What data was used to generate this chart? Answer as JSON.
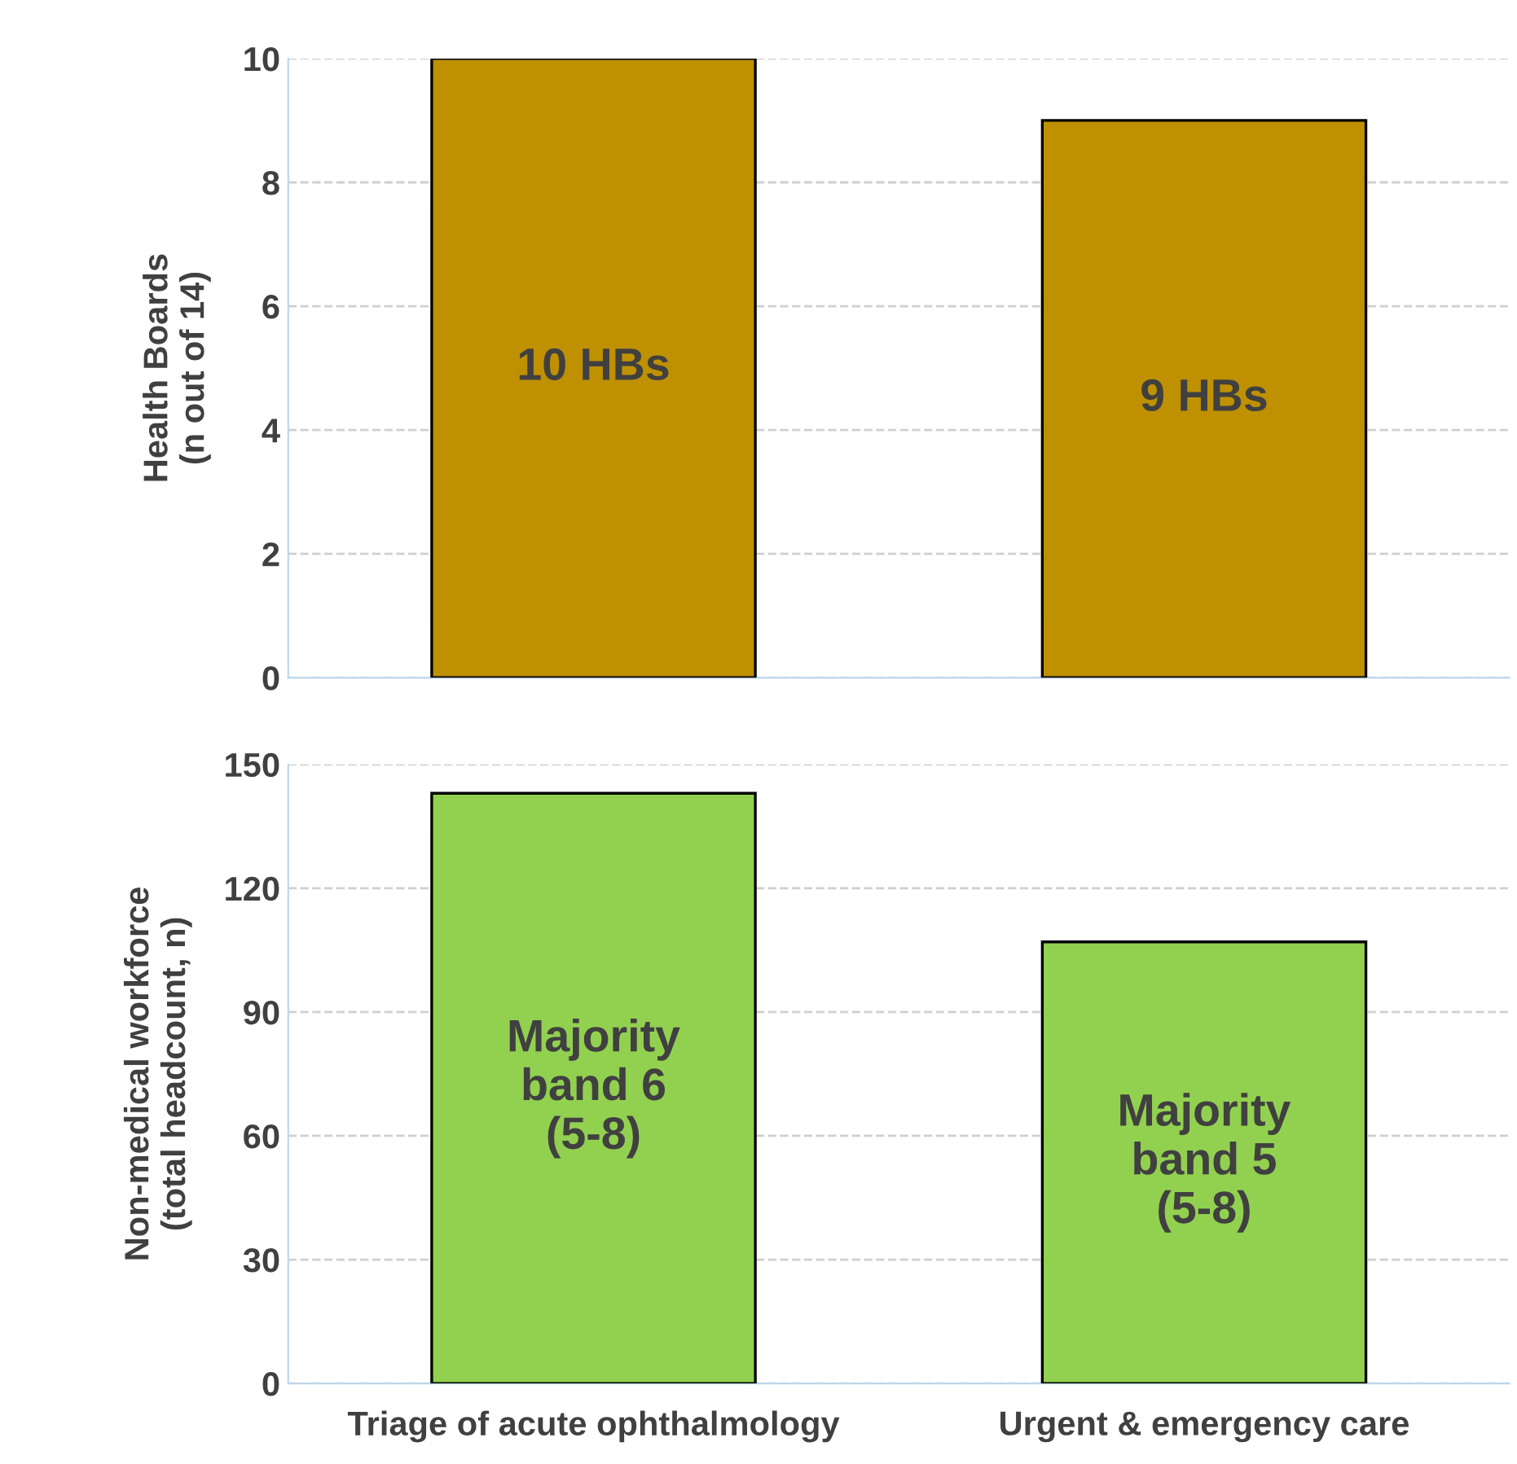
{
  "chart_data": [
    {
      "type": "bar",
      "ylabel": "Health Boards\n(n out of 14)",
      "categories": [
        null,
        null
      ],
      "values": [
        10,
        9
      ],
      "color": "#bf9000",
      "ylim": [
        0,
        10
      ],
      "yticks": [
        0,
        2,
        4,
        6,
        8,
        10
      ],
      "grid": "y",
      "tick_labels": "y",
      "annotations": [
        "10 HBs",
        "9 HBs"
      ]
    },
    {
      "type": "bar",
      "ylabel": "Non-medical workforce\n(total headcount, n)",
      "categories": [
        "Triage of acute ophthalmology",
        "Urgent & emergency care"
      ],
      "values": [
        143,
        107
      ],
      "color": "#92d050",
      "ylim": [
        0,
        150
      ],
      "yticks": [
        0,
        30,
        60,
        90,
        120,
        150
      ],
      "grid": "y",
      "annotations": [
        "Majority\nband 6\n(5-8)",
        "Majority\nband 5\n(5-8)"
      ]
    }
  ]
}
